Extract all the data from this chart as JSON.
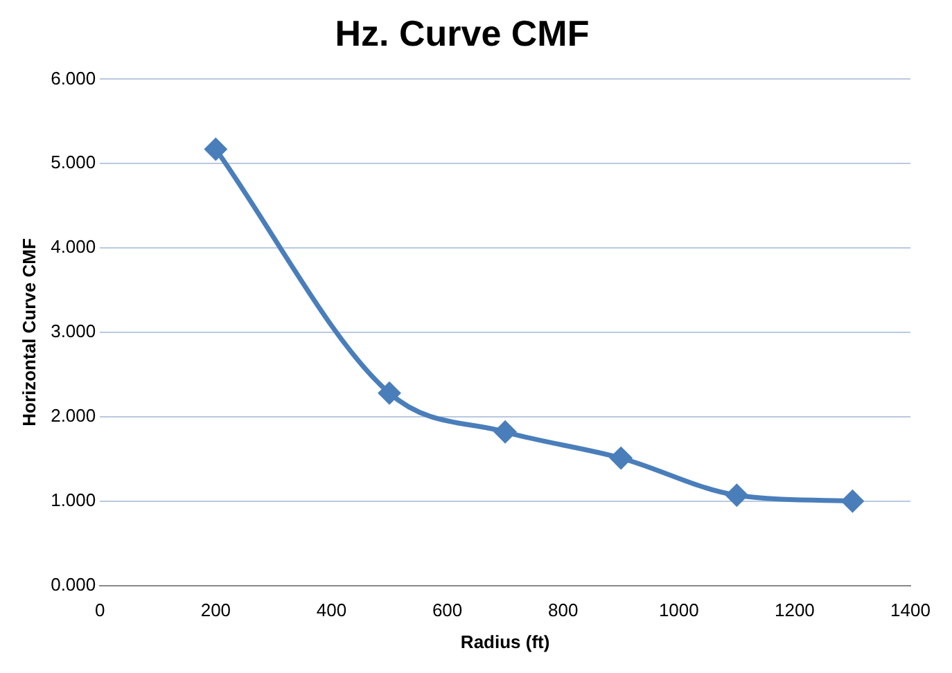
{
  "chart_data": {
    "type": "line",
    "title": "Hz. Curve CMF",
    "xlabel": "Radius (ft)",
    "ylabel": "Horizontal Curve CMF",
    "x": [
      200,
      500,
      700,
      900,
      1100,
      1300
    ],
    "series": [
      {
        "color": "#4a7ebb",
        "values": [
          5.17,
          2.28,
          1.82,
          1.51,
          1.07,
          1.0
        ]
      }
    ],
    "xlim": [
      0,
      1400
    ],
    "xticks": [
      0,
      200,
      400,
      600,
      800,
      1000,
      1200,
      1400
    ],
    "ylim": [
      0,
      6
    ],
    "yticks": [
      {
        "value": 0,
        "label": "0.000"
      },
      {
        "value": 1,
        "label": "1.000"
      },
      {
        "value": 2,
        "label": "2.000"
      },
      {
        "value": 3,
        "label": "3.000"
      },
      {
        "value": 4,
        "label": "4.000"
      },
      {
        "value": 5,
        "label": "5.000"
      },
      {
        "value": 6,
        "label": "6.000"
      }
    ],
    "grid": "y",
    "legend": false,
    "marker": "diamond",
    "line_style": "solid"
  }
}
